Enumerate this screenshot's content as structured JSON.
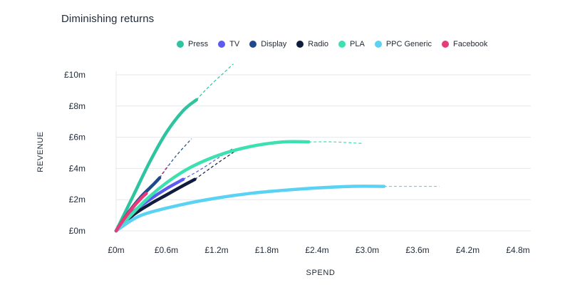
{
  "chart_data": {
    "type": "line",
    "title": "Diminishing returns",
    "xlabel": "SPEND",
    "ylabel": "REVENUE",
    "xlim": [
      0,
      4.8
    ],
    "ylim": [
      0,
      10
    ],
    "x_ticks": [
      0,
      0.6,
      1.2,
      1.8,
      2.4,
      3.0,
      3.6,
      4.2,
      4.8
    ],
    "x_tick_labels": [
      "£0m",
      "£0.6m",
      "£1.2m",
      "£1.8m",
      "£2.4m",
      "£3.0m",
      "£3.6m",
      "£4.2m",
      "£4.8m"
    ],
    "y_ticks": [
      0,
      2,
      4,
      6,
      8,
      10
    ],
    "y_tick_labels": [
      "£0m",
      "£2m",
      "£4m",
      "£6m",
      "£8m",
      "£10m"
    ],
    "grid": "horizontal",
    "legend_position": "top",
    "series": [
      {
        "name": "Press",
        "color": "#2ec4a0",
        "x": [
          0,
          0.2,
          0.4,
          0.6,
          0.8,
          0.96
        ],
        "y": [
          0,
          2.2,
          4.4,
          6.3,
          7.7,
          8.4
        ],
        "projection_x": [
          0.96,
          1.1,
          1.3,
          1.4
        ],
        "projection_y": [
          8.4,
          9.2,
          10.2,
          10.7
        ]
      },
      {
        "name": "TV",
        "color": "#5b5bf0",
        "x": [
          0,
          0.2,
          0.4,
          0.6,
          0.8
        ],
        "y": [
          0,
          1.2,
          2.0,
          2.7,
          3.3
        ],
        "projection_x": [
          0.8,
          1.0,
          1.2,
          1.4
        ],
        "projection_y": [
          3.3,
          3.9,
          4.6,
          5.3
        ]
      },
      {
        "name": "Display",
        "color": "#1e4a8c",
        "x": [
          0,
          0.15,
          0.3,
          0.45,
          0.52
        ],
        "y": [
          0,
          1.2,
          2.2,
          3.0,
          3.4
        ],
        "projection_x": [
          0.52,
          0.7,
          0.9
        ],
        "projection_y": [
          3.4,
          4.7,
          5.9
        ]
      },
      {
        "name": "Radio",
        "color": "#101c3d",
        "x": [
          0,
          0.2,
          0.4,
          0.6,
          0.8,
          0.94
        ],
        "y": [
          0,
          1.0,
          1.7,
          2.3,
          2.9,
          3.3
        ],
        "projection_x": [
          0.94,
          1.2,
          1.42
        ],
        "projection_y": [
          3.3,
          4.3,
          5.1
        ]
      },
      {
        "name": "PLA",
        "color": "#3de0b0",
        "x": [
          0,
          0.4,
          0.8,
          1.2,
          1.6,
          2.0,
          2.3
        ],
        "y": [
          0,
          2.2,
          3.8,
          4.8,
          5.4,
          5.7,
          5.7
        ],
        "projection_x": [
          2.3,
          2.6,
          2.95
        ],
        "projection_y": [
          5.7,
          5.7,
          5.6
        ]
      },
      {
        "name": "PPC Generic",
        "color": "#5ad2f4",
        "x": [
          0,
          0.3,
          0.8,
          1.2,
          1.6,
          2.0,
          2.4,
          2.8,
          3.2
        ],
        "y": [
          0,
          1.0,
          1.7,
          2.1,
          2.4,
          2.6,
          2.75,
          2.85,
          2.85
        ],
        "projection_x": [
          3.2,
          3.6,
          3.86
        ],
        "projection_y": [
          2.85,
          2.85,
          2.85
        ]
      },
      {
        "name": "Facebook",
        "color": "#e83a7a",
        "x": [
          0,
          0.1,
          0.2,
          0.3,
          0.36
        ],
        "y": [
          0,
          0.8,
          1.5,
          2.1,
          2.4
        ],
        "projection_x": [
          0.36,
          0.5,
          0.62
        ],
        "projection_y": [
          2.4,
          3.3,
          4.2
        ]
      }
    ]
  }
}
